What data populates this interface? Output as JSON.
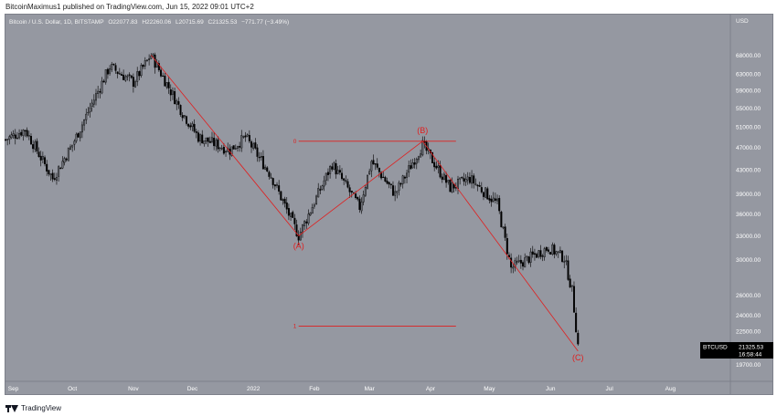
{
  "header": {
    "published": "BitcoinMaximus1 published on TradingView.com, Jun 15, 2022 09:01 UTC+2"
  },
  "symbol_line": {
    "name": "Bitcoin / U.S. Dollar, 1D, BITSTAMP",
    "open": "O22077.83",
    "high": "H22260.06",
    "low": "L20715.69",
    "close": "C21325.53",
    "change": "−771.77 (−3.49%)"
  },
  "price_axis": {
    "currency": "USD",
    "ticks": [
      "68000.00",
      "63000.00",
      "59000.00",
      "55000.00",
      "51000.00",
      "47000.00",
      "43000.00",
      "39000.00",
      "36000.00",
      "33000.00",
      "30000.00",
      "26000.00",
      "24000.00",
      "22500.00",
      "19700.00"
    ]
  },
  "last_price": {
    "symbol": "BTCUSD",
    "price": "21325.53",
    "countdown": "16:58:44"
  },
  "time_axis": {
    "labels": [
      "Sep",
      "Oct",
      "Nov",
      "Dec",
      "2022",
      "Feb",
      "Mar",
      "Apr",
      "May",
      "Jun",
      "Jul",
      "Aug"
    ]
  },
  "annotations": {
    "wave_a": "(A)",
    "wave_b": "(B)",
    "wave_c": "(C)",
    "fib_0": "0",
    "fib_1": "1"
  },
  "colors": {
    "background": "#9598a1",
    "candles": "#000000",
    "annotation": "#e01e1e",
    "price_tag": "#000000"
  },
  "footer": {
    "brand": "TradingView"
  },
  "chart_data": {
    "type": "candlestick",
    "symbol": "Bitcoin / U.S. Dollar, 1D, BITSTAMP",
    "y_scale": "log",
    "ylim": [
      18500,
      80000
    ],
    "x_range": [
      "2021-08-28",
      "2022-08-31"
    ],
    "anchors": [
      {
        "date": "2021-08-28",
        "price": 48500
      },
      {
        "date": "2021-09-07",
        "price": 50500
      },
      {
        "date": "2021-09-21",
        "price": 41500
      },
      {
        "date": "2021-10-01",
        "price": 47500
      },
      {
        "date": "2021-10-20",
        "price": 65000
      },
      {
        "date": "2021-11-01",
        "price": 61000
      },
      {
        "date": "2021-11-10",
        "price": 68000
      },
      {
        "date": "2021-11-26",
        "price": 54000
      },
      {
        "date": "2021-12-04",
        "price": 49000
      },
      {
        "date": "2021-12-20",
        "price": 46500
      },
      {
        "date": "2021-12-28",
        "price": 49000
      },
      {
        "date": "2022-01-10",
        "price": 42000
      },
      {
        "date": "2022-01-24",
        "price": 33000
      },
      {
        "date": "2022-02-10",
        "price": 44000
      },
      {
        "date": "2022-02-24",
        "price": 37000
      },
      {
        "date": "2022-03-02",
        "price": 44500
      },
      {
        "date": "2022-03-14",
        "price": 39000
      },
      {
        "date": "2022-03-28",
        "price": 47500
      },
      {
        "date": "2022-04-11",
        "price": 40000
      },
      {
        "date": "2022-04-21",
        "price": 41500
      },
      {
        "date": "2022-05-05",
        "price": 37500
      },
      {
        "date": "2022-05-12",
        "price": 29000
      },
      {
        "date": "2022-05-31",
        "price": 31500
      },
      {
        "date": "2022-06-08",
        "price": 30200
      },
      {
        "date": "2022-06-12",
        "price": 26500
      },
      {
        "date": "2022-06-15",
        "price": 21325
      }
    ],
    "wave_lines": [
      {
        "from": {
          "date": "2021-11-10",
          "price": 68000
        },
        "to": {
          "date": "2022-01-24",
          "price": 33000
        }
      },
      {
        "from": {
          "date": "2022-01-24",
          "price": 33000
        },
        "to": {
          "date": "2022-03-28",
          "price": 48200
        }
      },
      {
        "from": {
          "date": "2022-03-28",
          "price": 48200
        },
        "to": {
          "date": "2022-06-15",
          "price": 20800
        }
      }
    ],
    "fib_levels": [
      {
        "label": "0",
        "price": 48200,
        "from": "2022-01-24",
        "to": "2022-04-14"
      },
      {
        "label": "1",
        "price": 23000,
        "from": "2022-01-24",
        "to": "2022-04-14"
      }
    ],
    "wave_labels": [
      {
        "text": "(A)",
        "date": "2022-01-24",
        "price": 33000
      },
      {
        "text": "(B)",
        "date": "2022-03-28",
        "price": 48200
      },
      {
        "text": "(C)",
        "date": "2022-06-15",
        "price": 20800
      }
    ],
    "last_price": 21325.53
  }
}
